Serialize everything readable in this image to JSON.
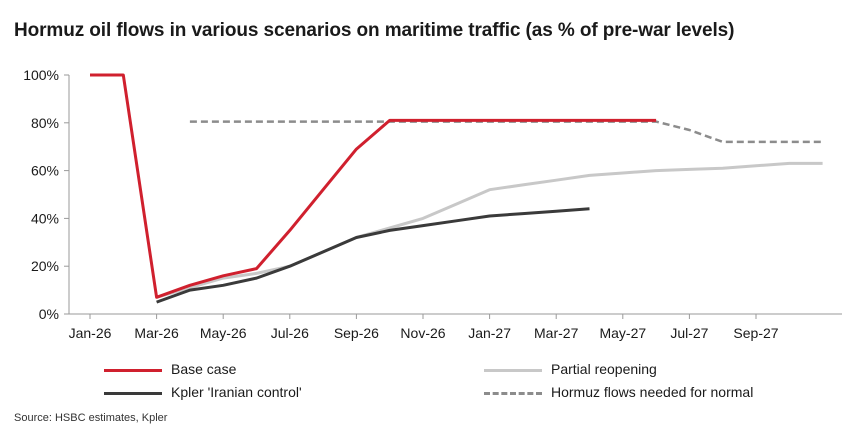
{
  "title": "Hormuz oil flows in various scenarios on maritime traffic (as % of pre-war levels)",
  "source": "Source: HSBC estimates, Kpler",
  "colors": {
    "base_case": "#d0202e",
    "partial_reopening": "#c8c8c8",
    "kpler": "#3a3a3a",
    "needed": "#8c8c8c",
    "axis": "#9a9a9a"
  },
  "chart_data": {
    "type": "line",
    "title": "Hormuz oil flows in various scenarios on maritime traffic (as % of pre-war levels)",
    "xlabel": "",
    "ylabel": "",
    "x_ticks": [
      "Jan-26",
      "Mar-26",
      "May-26",
      "Jul-26",
      "Sep-26",
      "Nov-26",
      "Jan-27",
      "Mar-27",
      "May-27",
      "Jul-27",
      "Sep-27"
    ],
    "x_range": [
      "2026-01",
      "2027-10"
    ],
    "y_ticks": [
      "0%",
      "20%",
      "40%",
      "60%",
      "80%",
      "100%"
    ],
    "ylim": [
      0,
      100
    ],
    "grid": false,
    "legend_position": "bottom",
    "series": [
      {
        "name": "Base case",
        "key": "base_case",
        "style": "solid",
        "points": [
          {
            "x": "2026-01",
            "y": 100
          },
          {
            "x": "2026-02",
            "y": 100
          },
          {
            "x": "2026-03",
            "y": 7
          },
          {
            "x": "2026-04",
            "y": 12
          },
          {
            "x": "2026-05",
            "y": 16
          },
          {
            "x": "2026-06",
            "y": 19
          },
          {
            "x": "2026-07",
            "y": 35
          },
          {
            "x": "2026-08",
            "y": 52
          },
          {
            "x": "2026-09",
            "y": 69
          },
          {
            "x": "2026-10",
            "y": 81
          },
          {
            "x": "2026-11",
            "y": 81
          },
          {
            "x": "2026-12",
            "y": 81
          },
          {
            "x": "2027-01",
            "y": 81
          },
          {
            "x": "2027-02",
            "y": 81
          },
          {
            "x": "2027-03",
            "y": 81
          },
          {
            "x": "2027-04",
            "y": 81
          },
          {
            "x": "2027-05",
            "y": 81
          },
          {
            "x": "2027-06",
            "y": 81
          }
        ]
      },
      {
        "name": "Partial reopening",
        "key": "partial_reopening",
        "style": "solid",
        "points": [
          {
            "x": "2026-03",
            "y": 7
          },
          {
            "x": "2026-04",
            "y": 11
          },
          {
            "x": "2026-05",
            "y": 15
          },
          {
            "x": "2026-06",
            "y": 17
          },
          {
            "x": "2026-07",
            "y": 20
          },
          {
            "x": "2026-08",
            "y": 26
          },
          {
            "x": "2026-09",
            "y": 32
          },
          {
            "x": "2026-10",
            "y": 36
          },
          {
            "x": "2026-11",
            "y": 40
          },
          {
            "x": "2026-12",
            "y": 46
          },
          {
            "x": "2027-01",
            "y": 52
          },
          {
            "x": "2027-02",
            "y": 54
          },
          {
            "x": "2027-03",
            "y": 56
          },
          {
            "x": "2027-04",
            "y": 58
          },
          {
            "x": "2027-05",
            "y": 59
          },
          {
            "x": "2027-06",
            "y": 60
          },
          {
            "x": "2027-07",
            "y": 60.5
          },
          {
            "x": "2027-08",
            "y": 61
          },
          {
            "x": "2027-09",
            "y": 62
          },
          {
            "x": "2027-10",
            "y": 63
          },
          {
            "x": "2027-11",
            "y": 63
          }
        ]
      },
      {
        "name": "Kpler 'Iranian control'",
        "key": "kpler",
        "style": "solid",
        "points": [
          {
            "x": "2026-03",
            "y": 5
          },
          {
            "x": "2026-04",
            "y": 10
          },
          {
            "x": "2026-05",
            "y": 12
          },
          {
            "x": "2026-06",
            "y": 15
          },
          {
            "x": "2026-07",
            "y": 20
          },
          {
            "x": "2026-08",
            "y": 26
          },
          {
            "x": "2026-09",
            "y": 32
          },
          {
            "x": "2026-10",
            "y": 35
          },
          {
            "x": "2026-11",
            "y": 37
          },
          {
            "x": "2026-12",
            "y": 39
          },
          {
            "x": "2027-01",
            "y": 41
          },
          {
            "x": "2027-02",
            "y": 42
          },
          {
            "x": "2027-03",
            "y": 43
          },
          {
            "x": "2027-04",
            "y": 44
          }
        ]
      },
      {
        "name": "Hormuz flows needed for normal",
        "key": "needed",
        "style": "dashed",
        "points": [
          {
            "x": "2026-04",
            "y": 80.5
          },
          {
            "x": "2026-05",
            "y": 80.5
          },
          {
            "x": "2026-06",
            "y": 80.5
          },
          {
            "x": "2026-07",
            "y": 80.5
          },
          {
            "x": "2026-08",
            "y": 80.5
          },
          {
            "x": "2026-09",
            "y": 80.5
          },
          {
            "x": "2026-10",
            "y": 80.5
          },
          {
            "x": "2026-11",
            "y": 80.5
          },
          {
            "x": "2026-12",
            "y": 80.5
          },
          {
            "x": "2027-01",
            "y": 80.5
          },
          {
            "x": "2027-02",
            "y": 80.5
          },
          {
            "x": "2027-03",
            "y": 80.5
          },
          {
            "x": "2027-04",
            "y": 80.5
          },
          {
            "x": "2027-05",
            "y": 80.5
          },
          {
            "x": "2027-06",
            "y": 80.5
          },
          {
            "x": "2027-07",
            "y": 77
          },
          {
            "x": "2027-08",
            "y": 72
          },
          {
            "x": "2027-09",
            "y": 72
          },
          {
            "x": "2027-10",
            "y": 72
          },
          {
            "x": "2027-11",
            "y": 72
          }
        ]
      }
    ]
  },
  "legend": [
    {
      "label": "Base case",
      "key": "base_case",
      "style": "solid"
    },
    {
      "label": "Partial reopening",
      "key": "partial_reopening",
      "style": "solid"
    },
    {
      "label": "Kpler 'Iranian control'",
      "key": "kpler",
      "style": "solid"
    },
    {
      "label": "Hormuz flows needed for normal",
      "key": "needed",
      "style": "dashed"
    }
  ]
}
